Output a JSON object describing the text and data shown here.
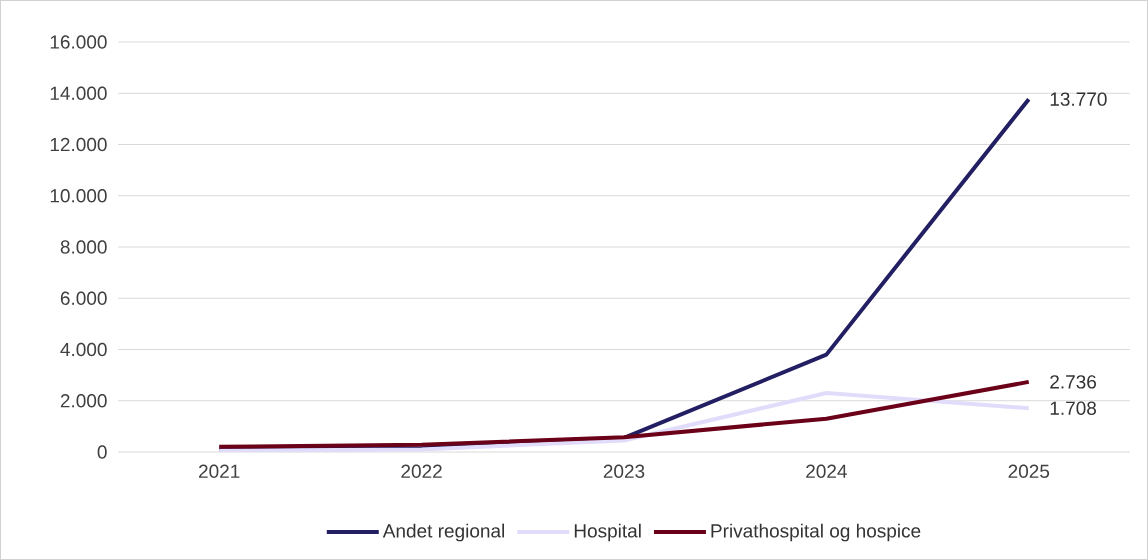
{
  "chart_data": {
    "type": "line",
    "categories": [
      "2021",
      "2022",
      "2023",
      "2024",
      "2025"
    ],
    "series": [
      {
        "name": "Andet regional",
        "color": "#231f63",
        "values": [
          100,
          150,
          550,
          3800,
          13770
        ],
        "value_labels": [
          null,
          null,
          null,
          null,
          "13.770"
        ]
      },
      {
        "name": "Hospital",
        "color": "#e2dcfb",
        "values": [
          50,
          100,
          450,
          2300,
          1708
        ],
        "value_labels": [
          null,
          null,
          null,
          null,
          "1.708"
        ]
      },
      {
        "name": "Privathospital og hospice",
        "color": "#6b0019",
        "values": [
          200,
          280,
          580,
          1300,
          2736
        ],
        "value_labels": [
          null,
          null,
          null,
          null,
          "2.736"
        ]
      }
    ],
    "ylim": [
      0,
      16000
    ],
    "yticks": [
      {
        "value": 0,
        "label": "0"
      },
      {
        "value": 2000,
        "label": "2.000"
      },
      {
        "value": 4000,
        "label": "4.000"
      },
      {
        "value": 6000,
        "label": "6.000"
      },
      {
        "value": 8000,
        "label": "8.000"
      },
      {
        "value": 10000,
        "label": "10.000"
      },
      {
        "value": 12000,
        "label": "12.000"
      },
      {
        "value": 14000,
        "label": "14.000"
      },
      {
        "value": 16000,
        "label": "16.000"
      }
    ],
    "grid": "y",
    "legend": "bottom",
    "marker": "none",
    "line_style": "solid"
  }
}
